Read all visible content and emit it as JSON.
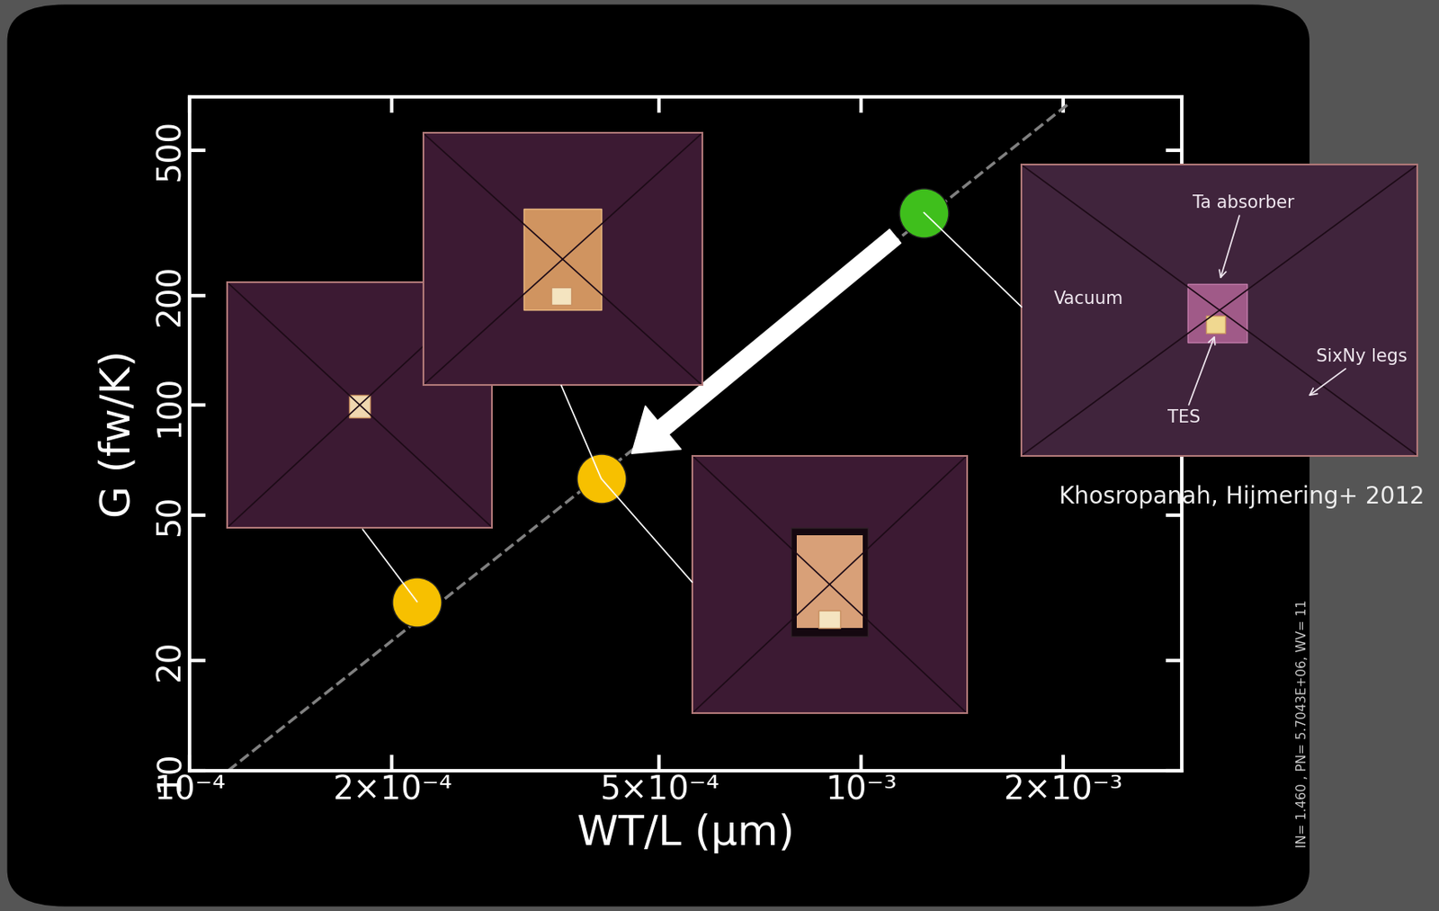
{
  "chart_data": {
    "type": "scatter",
    "xlabel": "WT/L (µm)",
    "ylabel": "G (fw/K)",
    "log": true,
    "grid": false,
    "xlim": [
      0.0001,
      0.003
    ],
    "ylim": [
      10,
      700
    ],
    "xticks": [
      {
        "value": 0.0001,
        "label": "10⁻⁴"
      },
      {
        "value": 0.0002,
        "label": "2×10⁻⁴"
      },
      {
        "value": 0.0005,
        "label": "5×10⁻⁴"
      },
      {
        "value": 0.001,
        "label": "10⁻³"
      },
      {
        "value": 0.002,
        "label": "2×10⁻³"
      }
    ],
    "yticks": [
      10,
      20,
      50,
      100,
      200,
      500
    ],
    "series": [
      {
        "type": "scatter",
        "x": [
          0.000218,
          0.00041
        ],
        "values": [
          29,
          63
        ],
        "color": "#f7c000",
        "marker": "circle"
      },
      {
        "type": "scatter",
        "x": [
          0.00124
        ],
        "values": [
          337
        ],
        "color": "#3fbf1c",
        "marker": "circle"
      },
      {
        "type": "line",
        "x": [
          0.000114,
          0.00205
        ],
        "values": [
          10,
          675
        ],
        "color": "#808080",
        "line_style": "dashed"
      }
    ],
    "annotations": [
      "Ta absorber",
      "Vacuum",
      "TES",
      "SixNy legs",
      "Khosropanah, Hijmering+ 2012",
      "IN= 1.460 , PN= 5.7043E+06, WV= 11"
    ]
  }
}
